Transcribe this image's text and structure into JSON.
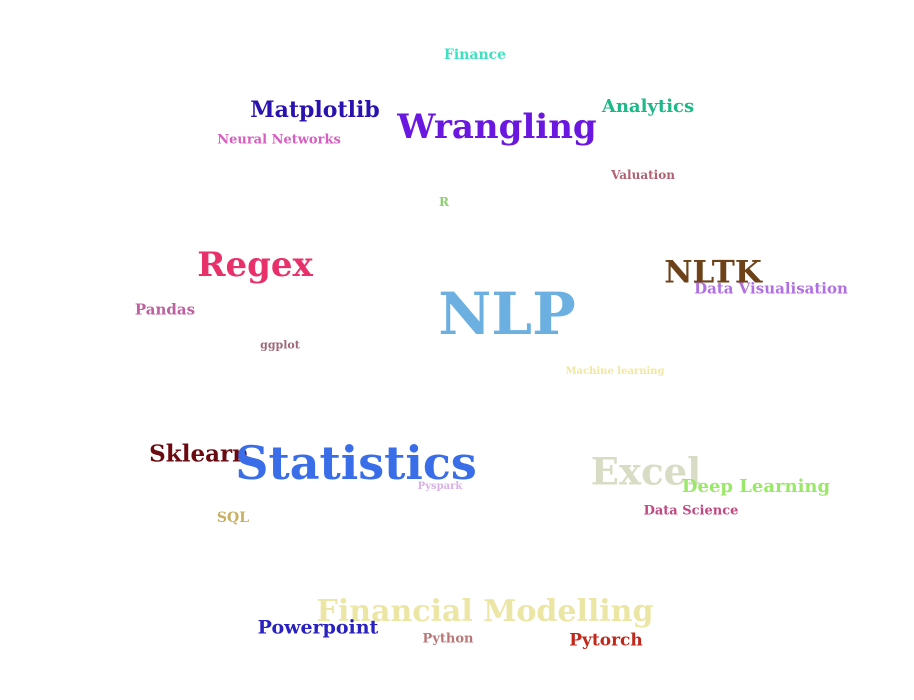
{
  "words": [
    {
      "text": "Finance",
      "color": "#3fe0c0"
    },
    {
      "text": "Matplotlib",
      "color": "#2a12b0"
    },
    {
      "text": "Analytics",
      "color": "#1db887"
    },
    {
      "text": "Wrangling",
      "color": "#6a18e0"
    },
    {
      "text": "Neural Networks",
      "color": "#d65ec0"
    },
    {
      "text": "Valuation",
      "color": "#b26070"
    },
    {
      "text": "R",
      "color": "#8cd070"
    },
    {
      "text": "Regex",
      "color": "#e8306a"
    },
    {
      "text": "NLTK",
      "color": "#6e4218"
    },
    {
      "text": "Data Visualisation",
      "color": "#b070e0"
    },
    {
      "text": "Pandas",
      "color": "#c060a0"
    },
    {
      "text": "NLP",
      "color": "#6bb0e0"
    },
    {
      "text": "ggplot",
      "color": "#a06878"
    },
    {
      "text": "Machine learning",
      "color": "#f0e8a0"
    },
    {
      "text": "Sklearn",
      "color": "#6a0a10"
    },
    {
      "text": "Statistics",
      "color": "#3a6ee8"
    },
    {
      "text": "Excel",
      "color": "#d8dcc4"
    },
    {
      "text": "Deep Learning",
      "color": "#9ae868"
    },
    {
      "text": "Pyspark",
      "color": "#d8b0e8"
    },
    {
      "text": "Data Science",
      "color": "#c04880"
    },
    {
      "text": "SQL",
      "color": "#c8b060"
    },
    {
      "text": "Financial Modelling",
      "color": "#ece6a4"
    },
    {
      "text": "Powerpoint",
      "color": "#2a22c0"
    },
    {
      "text": "Python",
      "color": "#b87878"
    },
    {
      "text": "Pytorch",
      "color": "#c0281c"
    }
  ]
}
